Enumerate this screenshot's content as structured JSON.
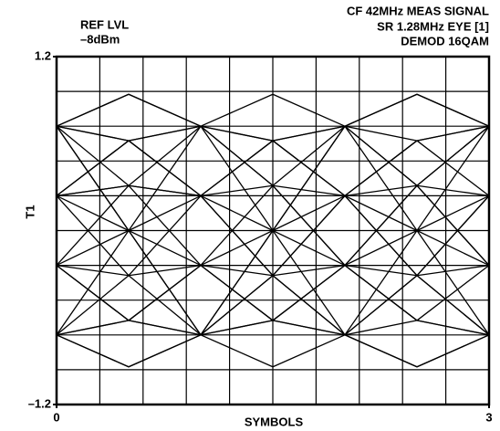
{
  "chart_data": {
    "type": "line",
    "info_left": [
      "REF LVL",
      "–8dBm"
    ],
    "info_right": [
      "CF 42MHz MEAS SIGNAL",
      "SR 1.28MHz EYE [1]",
      "DEMOD 16QAM"
    ],
    "ylabel": "T1",
    "xlabel": "SYMBOLS",
    "xlim": [
      0,
      3
    ],
    "ylim": [
      -1.2,
      1.2
    ],
    "xticks": [
      0,
      3
    ],
    "yticks": [
      1.2,
      {
        "value": -1.2,
        "label": "–1.2"
      }
    ],
    "xgrid": [
      0.3,
      0.6,
      0.9,
      1.2,
      1.5,
      1.8,
      2.1,
      2.4,
      2.7
    ],
    "ygrid": [
      -0.96,
      -0.72,
      -0.48,
      -0.24,
      0,
      0.24,
      0.48,
      0.72,
      0.96
    ],
    "grid": true,
    "color": "#000000",
    "x": [
      0,
      0.5,
      1,
      1.5,
      2,
      2.5,
      3
    ],
    "series": [
      {
        "values": [
          0.72,
          0.94,
          0.72,
          0.94,
          0.72,
          0.94,
          0.72
        ]
      },
      {
        "values": [
          0.72,
          0,
          -0.72,
          0,
          0.72,
          0,
          -0.72
        ]
      },
      {
        "values": [
          -0.72,
          -0.94,
          -0.72,
          -0.94,
          -0.72,
          -0.94,
          -0.72
        ]
      },
      {
        "values": [
          0.24,
          0.31,
          0.24,
          0.31,
          0.24,
          0.31,
          0.24
        ]
      },
      {
        "values": [
          -0.24,
          -0.31,
          -0.24,
          -0.31,
          -0.24,
          -0.31,
          -0.24
        ]
      },
      {
        "values": [
          0.72,
          0.62,
          0.24,
          0,
          -0.24,
          -0.62,
          -0.72
        ]
      },
      {
        "values": [
          -0.72,
          -0.62,
          -0.24,
          0,
          0.24,
          0.62,
          0.72
        ]
      },
      {
        "values": [
          0.24,
          0.62,
          0.72,
          0,
          -0.72,
          -0.62,
          -0.24
        ]
      },
      {
        "values": [
          -0.24,
          -0.62,
          -0.72,
          0,
          0.72,
          0.62,
          0.24
        ]
      },
      {
        "values": [
          0.72,
          0.31,
          -0.24,
          -0.62,
          -0.72,
          -0.31,
          0.24
        ]
      },
      {
        "values": [
          -0.72,
          -0.31,
          0.24,
          0.62,
          0.72,
          0.31,
          -0.24
        ]
      },
      {
        "values": [
          0.24,
          -0.31,
          -0.72,
          -0.31,
          0.24,
          0.62,
          0.72
        ]
      },
      {
        "values": [
          -0.24,
          0.31,
          0.72,
          0.31,
          -0.24,
          -0.62,
          -0.72
        ]
      },
      {
        "values": [
          0.72,
          0.94,
          0.72,
          0.31,
          -0.24,
          0,
          0.24
        ]
      },
      {
        "values": [
          -0.72,
          -0.94,
          -0.72,
          -0.31,
          0.24,
          0,
          -0.24
        ]
      },
      {
        "values": [
          0.24,
          0,
          -0.24,
          0.31,
          0.72,
          0.94,
          0.72
        ]
      },
      {
        "values": [
          -0.24,
          0,
          0.24,
          -0.31,
          -0.72,
          -0.94,
          -0.72
        ]
      },
      {
        "values": [
          0.72,
          0.62,
          0.24,
          0.62,
          0.72,
          0.31,
          -0.24
        ]
      },
      {
        "values": [
          -0.72,
          -0.62,
          -0.24,
          -0.62,
          -0.72,
          -0.31,
          0.24
        ]
      },
      {
        "values": [
          0.24,
          0.62,
          0.72,
          0.62,
          0.24,
          -0.31,
          -0.72
        ]
      },
      {
        "values": [
          -0.24,
          -0.62,
          -0.72,
          -0.62,
          -0.24,
          0.31,
          0.72
        ]
      },
      {
        "values": [
          0.72,
          0,
          -0.72,
          -0.62,
          -0.24,
          0.31,
          0.72
        ]
      },
      {
        "values": [
          -0.72,
          0,
          0.72,
          0.62,
          0.24,
          -0.31,
          -0.72
        ]
      },
      {
        "values": [
          0.24,
          0.31,
          0.24,
          -0.31,
          -0.72,
          0,
          0.72
        ]
      }
    ]
  }
}
